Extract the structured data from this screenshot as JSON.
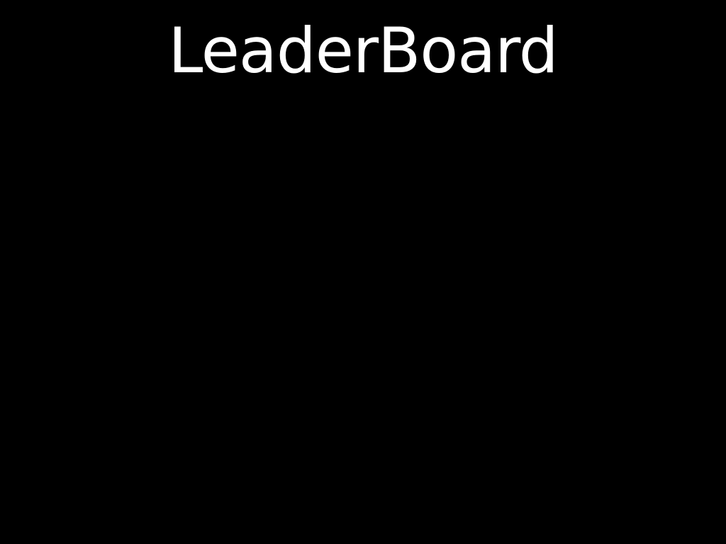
{
  "screen": {
    "title": "LeaderBoard",
    "background_color": "#000000",
    "text_color": "#ffffff"
  },
  "leaderboard": {
    "entries": []
  }
}
